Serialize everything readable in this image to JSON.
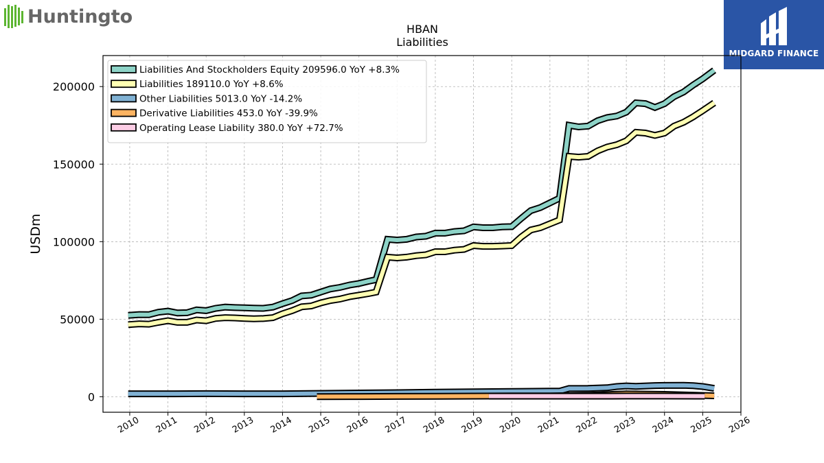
{
  "brand": {
    "logo_text": "Huntington",
    "logo_color": "#5cb531",
    "badge_text": "MIDGARD FINANCE",
    "badge_color": "#2a55a6"
  },
  "chart_data": {
    "type": "line",
    "title": "HBAN",
    "subtitle": "Liabilities",
    "ylabel": "USDm",
    "xlabel": "",
    "xlim": [
      2009.3,
      2026.0
    ],
    "ylim": [
      -10000,
      220000
    ],
    "yticks": [
      0,
      50000,
      100000,
      150000,
      200000
    ],
    "ytick_labels": [
      "0",
      "50000",
      "100000",
      "150000",
      "200000"
    ],
    "xticks": [
      2010,
      2011,
      2012,
      2013,
      2014,
      2015,
      2016,
      2017,
      2018,
      2019,
      2020,
      2021,
      2022,
      2023,
      2024,
      2025,
      2026
    ],
    "xtick_labels": [
      "2010",
      "2011",
      "2012",
      "2013",
      "2014",
      "2015",
      "2016",
      "2017",
      "2018",
      "2019",
      "2020",
      "2021",
      "2022",
      "2023",
      "2024",
      "2025",
      "2026"
    ],
    "grid": true,
    "legend_position": "top-left",
    "series": [
      {
        "name": "Liabilities And Stockholders Equity",
        "legend_label": "Liabilities And Stockholders Equity  209596.0 YoY +8.3%",
        "color": "#8dd3c7",
        "points": [
          [
            2009.96,
            52500
          ],
          [
            2010.25,
            53000
          ],
          [
            2010.5,
            52900
          ],
          [
            2010.75,
            54500
          ],
          [
            2011.0,
            55200
          ],
          [
            2011.25,
            54000
          ],
          [
            2011.5,
            54200
          ],
          [
            2011.75,
            56000
          ],
          [
            2012.0,
            55500
          ],
          [
            2012.25,
            57000
          ],
          [
            2012.5,
            57800
          ],
          [
            2012.75,
            57500
          ],
          [
            2013.0,
            57300
          ],
          [
            2013.25,
            57100
          ],
          [
            2013.5,
            57000
          ],
          [
            2013.75,
            57800
          ],
          [
            2014.0,
            60000
          ],
          [
            2014.25,
            62000
          ],
          [
            2014.5,
            65000
          ],
          [
            2014.75,
            65500
          ],
          [
            2015.0,
            67500
          ],
          [
            2015.25,
            69500
          ],
          [
            2015.5,
            70500
          ],
          [
            2015.75,
            72000
          ],
          [
            2016.0,
            73000
          ],
          [
            2016.25,
            74500
          ],
          [
            2016.45,
            75500
          ],
          [
            2016.75,
            101500
          ],
          [
            2017.0,
            101000
          ],
          [
            2017.25,
            101500
          ],
          [
            2017.5,
            103000
          ],
          [
            2017.75,
            103500
          ],
          [
            2018.0,
            105500
          ],
          [
            2018.25,
            105500
          ],
          [
            2018.5,
            106500
          ],
          [
            2018.75,
            107000
          ],
          [
            2019.0,
            109500
          ],
          [
            2019.25,
            109000
          ],
          [
            2019.5,
            109000
          ],
          [
            2019.75,
            109500
          ],
          [
            2020.0,
            109700
          ],
          [
            2020.25,
            115000
          ],
          [
            2020.5,
            120000
          ],
          [
            2020.75,
            122000
          ],
          [
            2021.0,
            125000
          ],
          [
            2021.25,
            128000
          ],
          [
            2021.5,
            175000
          ],
          [
            2021.75,
            174000
          ],
          [
            2022.0,
            174500
          ],
          [
            2022.25,
            178000
          ],
          [
            2022.5,
            180000
          ],
          [
            2022.75,
            181000
          ],
          [
            2023.0,
            183500
          ],
          [
            2023.25,
            189500
          ],
          [
            2023.5,
            189000
          ],
          [
            2023.75,
            186500
          ],
          [
            2024.0,
            189000
          ],
          [
            2024.25,
            193500
          ],
          [
            2024.5,
            196500
          ],
          [
            2024.75,
            201000
          ],
          [
            2025.0,
            205000
          ],
          [
            2025.3,
            210500
          ]
        ]
      },
      {
        "name": "Liabilities",
        "legend_label": "Liabilities  189110.0 YoY +8.6%",
        "color": "#ffffb3",
        "points": [
          [
            2009.96,
            46500
          ],
          [
            2010.25,
            47000
          ],
          [
            2010.5,
            46800
          ],
          [
            2010.75,
            48000
          ],
          [
            2011.0,
            49000
          ],
          [
            2011.25,
            48000
          ],
          [
            2011.5,
            48000
          ],
          [
            2011.75,
            49500
          ],
          [
            2012.0,
            49000
          ],
          [
            2012.25,
            50500
          ],
          [
            2012.5,
            51000
          ],
          [
            2012.75,
            50800
          ],
          [
            2013.0,
            50500
          ],
          [
            2013.25,
            50300
          ],
          [
            2013.5,
            50400
          ],
          [
            2013.75,
            51000
          ],
          [
            2014.0,
            53500
          ],
          [
            2014.25,
            55500
          ],
          [
            2014.5,
            58000
          ],
          [
            2014.75,
            58500
          ],
          [
            2015.0,
            60500
          ],
          [
            2015.25,
            62000
          ],
          [
            2015.5,
            63000
          ],
          [
            2015.75,
            64500
          ],
          [
            2016.0,
            65500
          ],
          [
            2016.25,
            66500
          ],
          [
            2016.45,
            67500
          ],
          [
            2016.75,
            90000
          ],
          [
            2017.0,
            89500
          ],
          [
            2017.25,
            90000
          ],
          [
            2017.5,
            91000
          ],
          [
            2017.75,
            91500
          ],
          [
            2018.0,
            93500
          ],
          [
            2018.25,
            93500
          ],
          [
            2018.5,
            94500
          ],
          [
            2018.75,
            95000
          ],
          [
            2019.0,
            97500
          ],
          [
            2019.25,
            97000
          ],
          [
            2019.5,
            97000
          ],
          [
            2019.75,
            97200
          ],
          [
            2020.0,
            97500
          ],
          [
            2020.25,
            103000
          ],
          [
            2020.5,
            107500
          ],
          [
            2020.75,
            109000
          ],
          [
            2021.0,
            111500
          ],
          [
            2021.25,
            114000
          ],
          [
            2021.5,
            155000
          ],
          [
            2021.75,
            154500
          ],
          [
            2022.0,
            155000
          ],
          [
            2022.25,
            158500
          ],
          [
            2022.5,
            161000
          ],
          [
            2022.75,
            162500
          ],
          [
            2023.0,
            165000
          ],
          [
            2023.25,
            170500
          ],
          [
            2023.5,
            170000
          ],
          [
            2023.75,
            168500
          ],
          [
            2024.0,
            170000
          ],
          [
            2024.25,
            174500
          ],
          [
            2024.5,
            177000
          ],
          [
            2024.75,
            180500
          ],
          [
            2025.0,
            184500
          ],
          [
            2025.3,
            189500
          ]
        ]
      },
      {
        "name": "Other Liabilities",
        "legend_label": "Other Liabilities  5013.0 YoY -14.2%",
        "color": "#80b1d3",
        "points": [
          [
            2009.96,
            1900
          ],
          [
            2011.0,
            1900
          ],
          [
            2012.0,
            2000
          ],
          [
            2013.0,
            1900
          ],
          [
            2014.0,
            1900
          ],
          [
            2014.9,
            2100
          ],
          [
            2016.0,
            2400
          ],
          [
            2017.0,
            2600
          ],
          [
            2018.0,
            2900
          ],
          [
            2019.0,
            3200
          ],
          [
            2020.0,
            3400
          ],
          [
            2021.0,
            3600
          ],
          [
            2021.25,
            3600
          ],
          [
            2021.5,
            5300
          ],
          [
            2022.0,
            5400
          ],
          [
            2022.5,
            5800
          ],
          [
            2022.75,
            6600
          ],
          [
            2023.0,
            7000
          ],
          [
            2023.25,
            6700
          ],
          [
            2023.75,
            7200
          ],
          [
            2024.0,
            7300
          ],
          [
            2024.5,
            7400
          ],
          [
            2024.75,
            7100
          ],
          [
            2025.0,
            6600
          ],
          [
            2025.3,
            5400
          ]
        ]
      },
      {
        "name": "Derivative Liabilities",
        "legend_label": "Derivative Liabilities  453.0 YoY -39.9%",
        "color": "#fdb462",
        "points": [
          [
            2014.9,
            100
          ],
          [
            2016.0,
            150
          ],
          [
            2017.0,
            200
          ],
          [
            2018.0,
            250
          ],
          [
            2019.0,
            400
          ],
          [
            2020.0,
            500
          ],
          [
            2021.0,
            500
          ],
          [
            2022.0,
            900
          ],
          [
            2023.0,
            1800
          ],
          [
            2024.0,
            1500
          ],
          [
            2025.05,
            800
          ],
          [
            2025.3,
            600
          ]
        ]
      },
      {
        "name": "Operating Lease Liability",
        "legend_label": "Operating Lease Liability  380.0 YoY +72.7%",
        "color": "#fccde5",
        "points": [
          [
            2019.4,
            400
          ],
          [
            2020.0,
            400
          ],
          [
            2021.0,
            400
          ],
          [
            2022.0,
            400
          ],
          [
            2023.0,
            450
          ],
          [
            2024.0,
            420
          ],
          [
            2025.05,
            380
          ]
        ]
      }
    ]
  }
}
